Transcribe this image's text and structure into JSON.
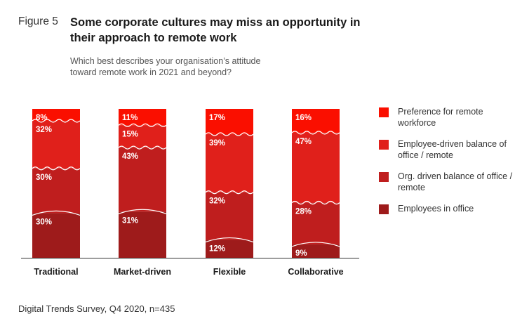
{
  "figure": {
    "label": "Figure 5",
    "title": "Some corporate cultures may miss an opportunity in their approach to remote work",
    "question": "Which best describes your organisation’s attitude toward remote work in 2021 and beyond?",
    "source": "Digital Trends Survey, Q4 2020, n=435"
  },
  "chart_data": {
    "type": "bar",
    "stacked": true,
    "categories": [
      "Traditional",
      "Market-driven",
      "Flexible",
      "Collaborative"
    ],
    "series": [
      {
        "name": "Employees in office",
        "values": [
          30,
          31,
          12,
          9
        ],
        "labels": [
          "30%",
          "31%",
          "12%",
          "9%"
        ],
        "color": "#9e1b1b"
      },
      {
        "name": "Org. driven balance of office / remote",
        "values": [
          30,
          43,
          32,
          28
        ],
        "labels": [
          "30%",
          "43%",
          "32%",
          "28%"
        ],
        "color": "#bf1e1e"
      },
      {
        "name": "Employee-driven balance of office / remote",
        "values": [
          32,
          15,
          39,
          47
        ],
        "labels": [
          "32%",
          "15%",
          "39%",
          "47%"
        ],
        "color": "#e0201b"
      },
      {
        "name": "Preference for remote workforce",
        "values": [
          8,
          11,
          17,
          16
        ],
        "labels": [
          "8%",
          "11%",
          "17%",
          "16%"
        ],
        "color": "#fa0f00"
      }
    ],
    "ylim": [
      0,
      100
    ],
    "grid": false,
    "legend_position": "right"
  }
}
